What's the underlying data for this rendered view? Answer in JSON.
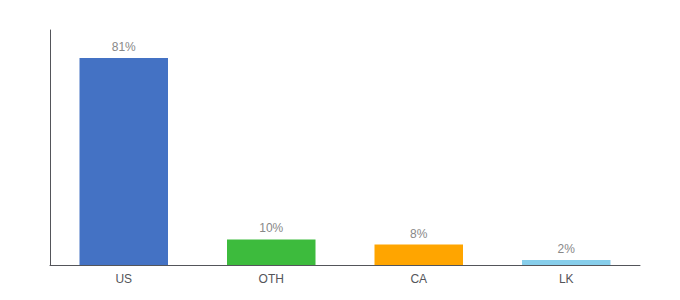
{
  "chart_data": {
    "type": "bar",
    "categories": [
      "US",
      "OTH",
      "CA",
      "LK"
    ],
    "values": [
      81,
      10,
      8,
      2
    ],
    "value_labels": [
      "81%",
      "10%",
      "8%",
      "2%"
    ],
    "colors": [
      "#4472C4",
      "#3DBB3D",
      "#FFA500",
      "#87CEEB"
    ],
    "ylim": [
      0,
      92
    ],
    "yticks": [],
    "grid": false,
    "data_labels": true,
    "tick_labels": "x"
  }
}
